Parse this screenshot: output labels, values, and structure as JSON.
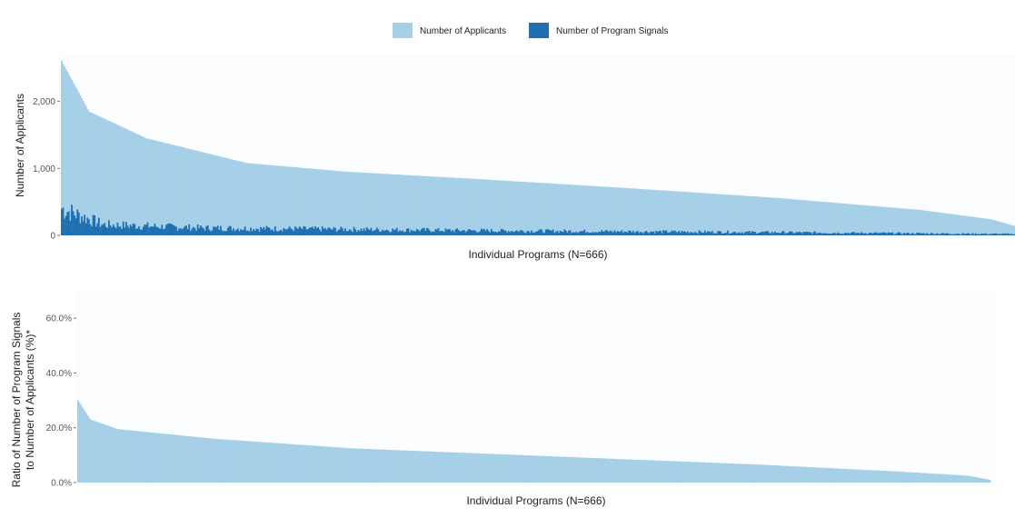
{
  "chart_data": [
    {
      "type": "bar",
      "title": "",
      "xlabel": "Individual Programs (N=666)",
      "ylabel": "Number of Applicants",
      "ylim": [
        0,
        2700
      ],
      "yticks": [
        0,
        1000,
        2000
      ],
      "ytick_labels": [
        "0",
        "1,000",
        "2,000"
      ],
      "n_bars": 666,
      "grid": false,
      "legend_position": "top",
      "series": [
        {
          "name": "Number of Applicants",
          "color": "#a6cfe8",
          "shape": "sorted-descending",
          "values_at_ranks": [
            {
              "rank": 1,
              "value": 2600
            },
            {
              "rank": 20,
              "value": 1850
            },
            {
              "rank": 60,
              "value": 1450
            },
            {
              "rank": 130,
              "value": 1080
            },
            {
              "rank": 200,
              "value": 950
            },
            {
              "rank": 300,
              "value": 830
            },
            {
              "rank": 400,
              "value": 700
            },
            {
              "rank": 500,
              "value": 560
            },
            {
              "rank": 600,
              "value": 380
            },
            {
              "rank": 650,
              "value": 240
            },
            {
              "rank": 666,
              "value": 140
            }
          ]
        },
        {
          "name": "Number of Program Signals",
          "color": "#1f6fb2",
          "shape": "noisy-decreasing",
          "values_at_ranks": [
            {
              "rank": 1,
              "value": 400
            },
            {
              "rank": 30,
              "value": 160
            },
            {
              "rank": 100,
              "value": 110
            },
            {
              "rank": 300,
              "value": 70
            },
            {
              "rank": 500,
              "value": 45
            },
            {
              "rank": 666,
              "value": 20
            }
          ]
        }
      ]
    },
    {
      "type": "bar",
      "title": "",
      "xlabel": "Individual Programs (N=666)",
      "ylabel_lines": [
        "Ratio of Number of Program Signals",
        "to Number of Applicants (%)*"
      ],
      "ylim": [
        0,
        70
      ],
      "yticks": [
        0,
        20,
        40,
        60
      ],
      "ytick_labels": [
        "0.0%",
        "20.0%",
        "40.0%",
        "60.0%"
      ],
      "n_bars": 666,
      "grid": false,
      "series": [
        {
          "color": "#a6cfe8",
          "shape": "sorted-descending",
          "values_at_ranks": [
            {
              "rank": 1,
              "value": 30
            },
            {
              "rank": 10,
              "value": 23
            },
            {
              "rank": 30,
              "value": 19.5
            },
            {
              "rank": 100,
              "value": 16
            },
            {
              "rank": 200,
              "value": 12.5
            },
            {
              "rank": 300,
              "value": 10.5
            },
            {
              "rank": 400,
              "value": 8.5
            },
            {
              "rank": 500,
              "value": 6.5
            },
            {
              "rank": 600,
              "value": 4
            },
            {
              "rank": 650,
              "value": 2.5
            },
            {
              "rank": 666,
              "value": 1
            }
          ]
        }
      ]
    }
  ]
}
